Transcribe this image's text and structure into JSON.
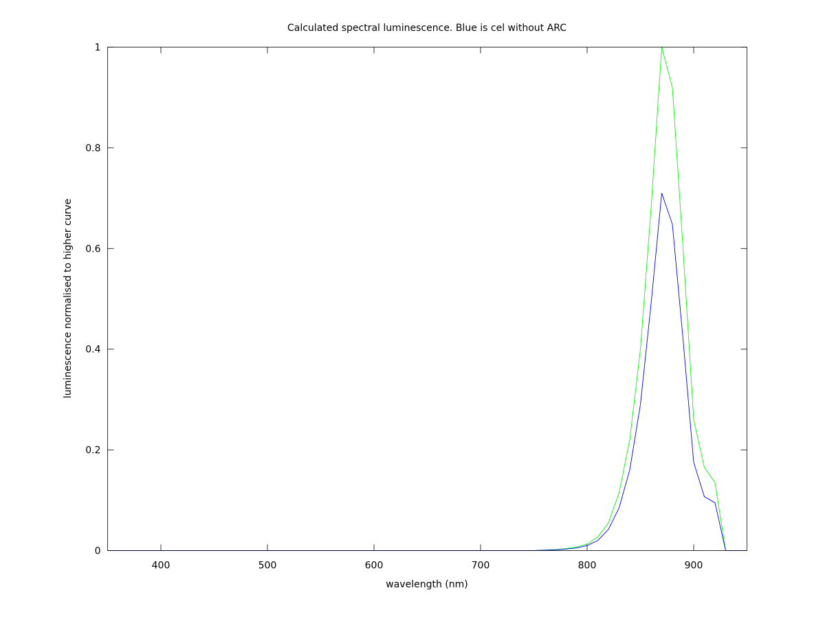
{
  "chart_data": {
    "type": "line",
    "title": "Calculated spectral luminescence. Blue is cel without ARC",
    "xlabel": "wavelength (nm)",
    "ylabel": "luminescence normalised to higher curve",
    "xlim": [
      350,
      950
    ],
    "ylim": [
      0,
      1
    ],
    "x_ticks": [
      400,
      500,
      600,
      700,
      800,
      900
    ],
    "y_ticks": [
      0,
      0.2,
      0.4,
      0.6,
      0.8,
      1
    ],
    "grid": false,
    "legend": "none",
    "x": [
      350,
      400,
      500,
      600,
      700,
      750,
      760,
      770,
      780,
      790,
      800,
      810,
      820,
      830,
      840,
      850,
      860,
      870,
      880,
      890,
      900,
      910,
      920,
      930,
      940,
      950
    ],
    "series": [
      {
        "color": "#00ff00",
        "values": [
          0,
          0,
          0,
          0,
          0,
          0,
          0.001,
          0.002,
          0.004,
          0.007,
          0.013,
          0.027,
          0.055,
          0.115,
          0.22,
          0.4,
          0.68,
          1.0,
          0.92,
          0.6,
          0.26,
          0.165,
          0.135,
          0.0,
          0,
          0
        ]
      },
      {
        "color": "#0000ff",
        "values": [
          0,
          0,
          0,
          0,
          0,
          0,
          0.0007,
          0.0015,
          0.003,
          0.005,
          0.01,
          0.02,
          0.042,
          0.085,
          0.16,
          0.29,
          0.49,
          0.71,
          0.648,
          0.42,
          0.175,
          0.107,
          0.095,
          0.0,
          0,
          0
        ]
      }
    ]
  }
}
